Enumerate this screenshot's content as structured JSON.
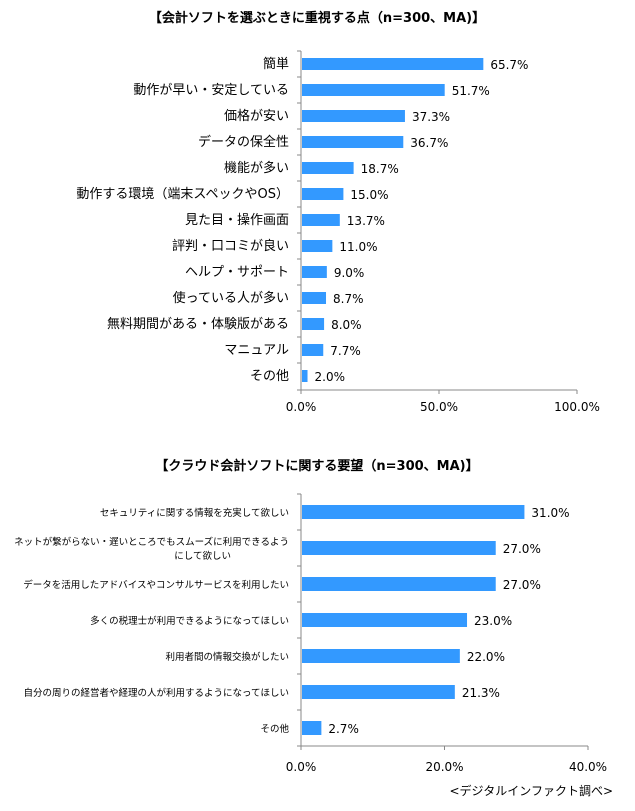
{
  "chart_data": [
    {
      "type": "bar",
      "orientation": "horizontal",
      "title": "【会計ソフトを選ぶときに重視する点（n=300、MA)】",
      "categories": [
        "簡単",
        "動作が早い・安定している",
        "価格が安い",
        "データの保全性",
        "機能が多い",
        "動作する環境（端末スペックやOS）",
        "見た目・操作画面",
        "評判・口コミが良い",
        "ヘルプ・サポート",
        "使っている人が多い",
        "無料期間がある・体験版がある",
        "マニュアル",
        "その他"
      ],
      "values": [
        65.7,
        51.7,
        37.3,
        36.7,
        18.7,
        15.0,
        13.7,
        11.0,
        9.0,
        8.7,
        8.0,
        7.7,
        2.0
      ],
      "data_labels": [
        "65.7%",
        "51.7%",
        "37.3%",
        "36.7%",
        "18.7%",
        "15.0%",
        "13.7%",
        "11.0%",
        "9.0%",
        "8.7%",
        "8.0%",
        "7.7%",
        "2.0%"
      ],
      "xlim": [
        0,
        100
      ],
      "ticks": [
        "0.0%",
        "50.0%",
        "100.0%"
      ],
      "grid": false,
      "color": "#3399ff"
    },
    {
      "type": "bar",
      "orientation": "horizontal",
      "title": "【クラウド会計ソフトに関する要望（n=300、MA)】",
      "categories": [
        "セキュリティに関する情報を充実して欲しい",
        "ネットが繋がらない・遅いところでもスムーズに利用できるようにして欲しい",
        "データを活用したアドバイスやコンサルサービスを利用したい",
        "多くの税理士が利用できるようになってほしい",
        "利用者間の情報交換がしたい",
        "自分の周りの経営者や経理の人が利用するようになってほしい",
        "その他"
      ],
      "category_lines": [
        [
          "セキュリティに関する情報を充実して欲しい"
        ],
        [
          "ネットが繋がらない・遅いところでもスムーズに利用できるよう",
          "にして欲しい"
        ],
        [
          "データを活用したアドバイスやコンサルサービスを利用したい"
        ],
        [
          "多くの税理士が利用できるようになってほしい"
        ],
        [
          "利用者間の情報交換がしたい"
        ],
        [
          "自分の周りの経営者や経理の人が利用するようになってほしい"
        ],
        [
          "その他"
        ]
      ],
      "values": [
        31.0,
        27.0,
        27.0,
        23.0,
        22.0,
        21.3,
        2.7
      ],
      "data_labels": [
        "31.0%",
        "27.0%",
        "27.0%",
        "23.0%",
        "22.0%",
        "21.3%",
        "2.7%"
      ],
      "xlim": [
        0,
        40
      ],
      "ticks": [
        "0.0%",
        "20.0%",
        "40.0%"
      ],
      "grid": false,
      "color": "#3399ff"
    }
  ],
  "source": "<デジタルインファクト調べ>"
}
